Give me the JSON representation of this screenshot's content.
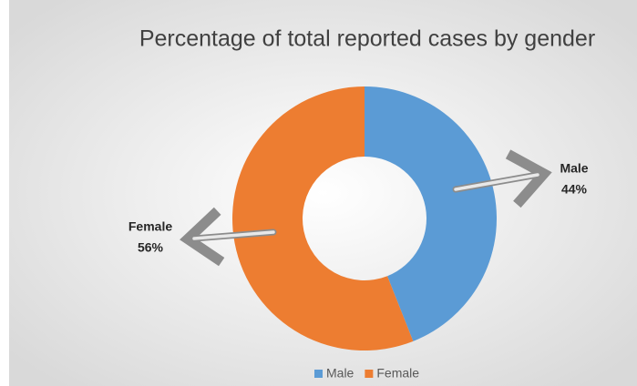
{
  "chart_data": {
    "type": "donut",
    "title": "Percentage of total reported cases by gender",
    "categories": [
      "Male",
      "Female"
    ],
    "values": [
      44,
      56
    ],
    "value_labels": [
      "44%",
      "56%"
    ],
    "colors": [
      "#5b9bd5",
      "#ed7d31"
    ]
  }
}
